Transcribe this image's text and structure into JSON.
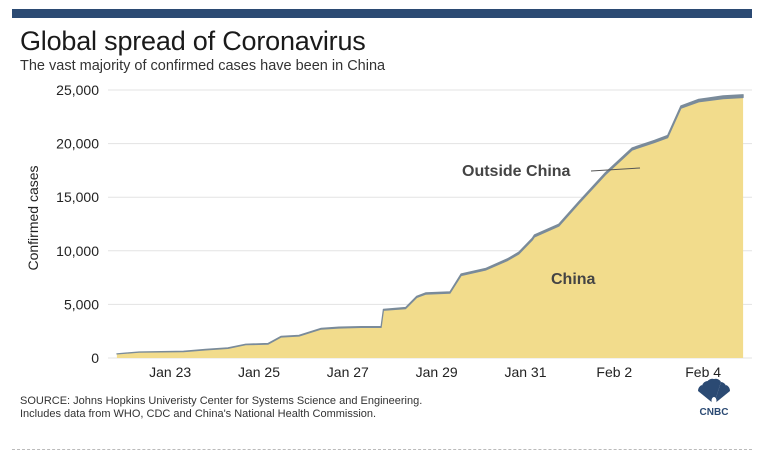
{
  "header": {
    "title": "Global spread of Coronavirus",
    "subtitle": "The vast majority of confirmed cases have been in China"
  },
  "chart_data": {
    "type": "area",
    "title": "Global spread of Coronavirus",
    "subtitle": "The vast majority of confirmed cases have been in China",
    "ylabel": "Confirmed cases",
    "xlabel": "",
    "ylim": [
      0,
      25000
    ],
    "xlim": [
      21.6,
      36.1
    ],
    "yticks": [
      0,
      5000,
      10000,
      15000,
      20000,
      25000
    ],
    "ytick_labels": [
      "0",
      "5,000",
      "10,000",
      "15,000",
      "20,000",
      "25,000"
    ],
    "xticks": [
      23,
      25,
      27,
      29,
      31,
      33,
      35
    ],
    "xtick_labels": [
      "Jan 23",
      "Jan 25",
      "Jan 27",
      "Jan 29",
      "Jan 31",
      "Feb 2",
      "Feb 4"
    ],
    "grid": true,
    "series": [
      {
        "name": "China",
        "color": "#f2dc8c",
        "x": [
          21.8,
          22.3,
          23.3,
          23.8,
          24.3,
          24.7,
          25.2,
          25.5,
          25.9,
          26.4,
          26.8,
          27.3,
          27.75,
          27.8,
          28.3,
          28.55,
          28.75,
          29.3,
          29.55,
          30.1,
          30.6,
          30.85,
          31.15,
          31.2,
          31.75,
          32.2,
          32.8,
          33.4,
          33.9,
          34.2,
          34.5,
          34.9,
          35.1,
          35.45,
          35.9
        ],
        "values": [
          380,
          540,
          600,
          760,
          900,
          1240,
          1290,
          1960,
          2050,
          2700,
          2800,
          2850,
          2850,
          4450,
          4610,
          5650,
          5950,
          6050,
          7700,
          8200,
          9100,
          9700,
          11000,
          11300,
          12300,
          14400,
          17100,
          19400,
          20100,
          20550,
          23300,
          23900,
          24000,
          24200,
          24300
        ]
      },
      {
        "name": "Outside China",
        "color": "#7a8b9a",
        "x": [
          21.8,
          22.3,
          23.3,
          23.8,
          24.3,
          24.7,
          25.2,
          25.5,
          25.9,
          26.4,
          26.8,
          27.3,
          27.75,
          27.8,
          28.3,
          28.55,
          28.75,
          29.3,
          29.55,
          30.1,
          30.6,
          30.85,
          31.15,
          31.2,
          31.75,
          32.2,
          32.8,
          33.4,
          33.9,
          34.2,
          34.5,
          34.9,
          35.1,
          35.45,
          35.9
        ],
        "values": [
          10,
          20,
          30,
          40,
          50,
          50,
          60,
          60,
          70,
          70,
          80,
          80,
          90,
          90,
          100,
          110,
          120,
          130,
          140,
          150,
          160,
          170,
          170,
          180,
          180,
          180,
          190,
          200,
          200,
          210,
          220,
          230,
          240,
          250,
          260
        ]
      }
    ],
    "annotations": [
      {
        "text": "Outside China",
        "target": "Outside China"
      },
      {
        "text": "China",
        "target": "China"
      }
    ]
  },
  "footer": {
    "source_line1": "SOURCE: Johns Hopkins Univeristy Center for Systems Science and Engineering.",
    "source_line2": "Includes data from WHO, CDC and China's National Health Commission.",
    "logo_text": "CNBC"
  }
}
